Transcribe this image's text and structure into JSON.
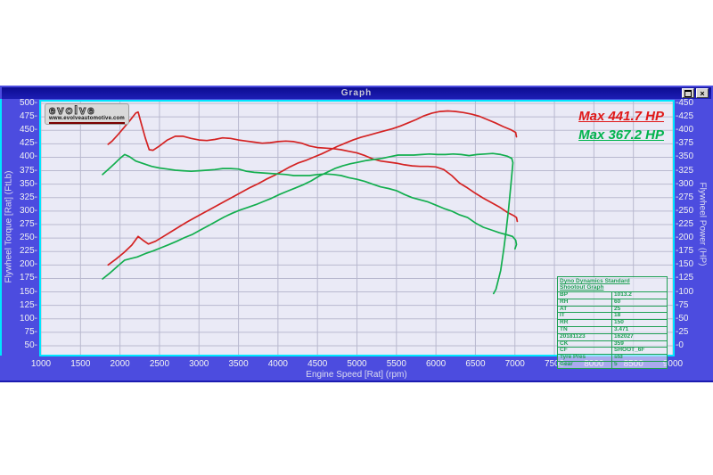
{
  "window": {
    "title": "Graph"
  },
  "titlebar_buttons": {
    "restore_label": "restore-window",
    "close_label": "close-window",
    "close_glyph": "×"
  },
  "logo": {
    "brand": "evolve",
    "url": "www.evolveautomotive.com"
  },
  "annotations": {
    "max_power_run1": "Max 441.7 HP",
    "max_power_run2": "Max 367.2 HP"
  },
  "info_table": {
    "title_line1": "Dyno Dynamics Standard",
    "title_line2": "Shootout Graph",
    "rows": [
      {
        "label": "BP",
        "value": "1013.2"
      },
      {
        "label": "RH",
        "value": "60"
      },
      {
        "label": "AT",
        "value": "25"
      },
      {
        "label": "IT",
        "value": "18"
      },
      {
        "label": "RR",
        "value": "150"
      },
      {
        "label": "TN",
        "value": "3.471"
      },
      {
        "label": "20181123",
        "value": "162027"
      },
      {
        "label": "CK",
        "value": "359"
      },
      {
        "label": "CF",
        "value": "SHOOT_6F"
      },
      {
        "label": "Tyre Pres",
        "value": "std"
      },
      {
        "label": "Gear",
        "value": "5"
      }
    ]
  },
  "colors": {
    "panel": "#4c4cdf",
    "titlebar": "#0c0c92",
    "plot_bg": "#eaeaf6",
    "plot_frame": "#00e6ff",
    "grid": "#b9b9cf",
    "run1": "#d42222",
    "run2": "#12ae4e",
    "max_red": "#e01818",
    "max_green": "#00b34d",
    "table_green": "#1fa055"
  },
  "chart_data": {
    "type": "line",
    "title": "Graph",
    "xlabel": "Engine Speed [Rat] (rpm)",
    "ylabel_left": "Flywheel Torque [Rat] (FtLb)",
    "ylabel_right": "Flywheel Power (HP)",
    "xlim": [
      1000,
      9000
    ],
    "ylim_left": [
      50,
      500
    ],
    "ylim_right": [
      0,
      450
    ],
    "grid": true,
    "xticks": [
      1000,
      1500,
      2000,
      2500,
      3000,
      3500,
      4000,
      4500,
      5000,
      5500,
      6000,
      6500,
      7000,
      7500,
      8000,
      8500,
      9000
    ],
    "yticks_left": [
      500,
      475,
      450,
      425,
      400,
      375,
      350,
      325,
      300,
      275,
      250,
      225,
      200,
      175,
      150,
      125,
      100,
      75,
      50
    ],
    "yticks_right": [
      450,
      425,
      400,
      375,
      350,
      325,
      300,
      275,
      250,
      225,
      200,
      175,
      150,
      125,
      100,
      75,
      50,
      25,
      0
    ],
    "max_annotations": [
      {
        "text": "Max 441.7 HP",
        "value_hp": 441.7,
        "run": "run1"
      },
      {
        "text": "Max 367.2 HP",
        "value_hp": 367.2,
        "run": "run2"
      }
    ],
    "series": [
      {
        "name": "run1-power",
        "axis": "right",
        "unit": "HP",
        "color": "#d42222",
        "points": [
          [
            1850,
            150
          ],
          [
            1950,
            161
          ],
          [
            2050,
            173
          ],
          [
            2150,
            187
          ],
          [
            2230,
            203
          ],
          [
            2290,
            196
          ],
          [
            2360,
            189
          ],
          [
            2450,
            194
          ],
          [
            2550,
            203
          ],
          [
            2650,
            212
          ],
          [
            2750,
            221
          ],
          [
            2850,
            230
          ],
          [
            2950,
            238
          ],
          [
            3050,
            246
          ],
          [
            3150,
            254
          ],
          [
            3250,
            262
          ],
          [
            3350,
            270
          ],
          [
            3450,
            278
          ],
          [
            3550,
            286
          ],
          [
            3650,
            294
          ],
          [
            3750,
            301
          ],
          [
            3850,
            309
          ],
          [
            3950,
            316
          ],
          [
            4050,
            324
          ],
          [
            4150,
            332
          ],
          [
            4250,
            339
          ],
          [
            4350,
            344
          ],
          [
            4450,
            350
          ],
          [
            4550,
            356
          ],
          [
            4650,
            363
          ],
          [
            4750,
            370
          ],
          [
            4850,
            376
          ],
          [
            4950,
            382
          ],
          [
            5050,
            387
          ],
          [
            5150,
            391
          ],
          [
            5250,
            395
          ],
          [
            5350,
            399
          ],
          [
            5450,
            403
          ],
          [
            5550,
            408
          ],
          [
            5650,
            414
          ],
          [
            5750,
            420
          ],
          [
            5850,
            427
          ],
          [
            5950,
            432
          ],
          [
            6050,
            435
          ],
          [
            6150,
            436
          ],
          [
            6250,
            435
          ],
          [
            6350,
            433
          ],
          [
            6450,
            430
          ],
          [
            6550,
            426
          ],
          [
            6650,
            420
          ],
          [
            6750,
            414
          ],
          [
            6850,
            407
          ],
          [
            6950,
            401
          ],
          [
            7010,
            396
          ],
          [
            7020,
            388
          ]
        ]
      },
      {
        "name": "run1-torque",
        "axis": "left",
        "unit": "FtLb",
        "color": "#d42222",
        "points": [
          [
            1850,
            424
          ],
          [
            1900,
            430
          ],
          [
            1975,
            442
          ],
          [
            2050,
            455
          ],
          [
            2125,
            468
          ],
          [
            2200,
            482
          ],
          [
            2230,
            484
          ],
          [
            2270,
            462
          ],
          [
            2320,
            436
          ],
          [
            2370,
            414
          ],
          [
            2420,
            413
          ],
          [
            2500,
            421
          ],
          [
            2600,
            432
          ],
          [
            2700,
            439
          ],
          [
            2800,
            439
          ],
          [
            2900,
            435
          ],
          [
            3000,
            432
          ],
          [
            3100,
            431
          ],
          [
            3200,
            433
          ],
          [
            3300,
            436
          ],
          [
            3400,
            435
          ],
          [
            3500,
            432
          ],
          [
            3600,
            430
          ],
          [
            3700,
            428
          ],
          [
            3800,
            426
          ],
          [
            3900,
            427
          ],
          [
            4000,
            429
          ],
          [
            4100,
            430
          ],
          [
            4200,
            429
          ],
          [
            4300,
            426
          ],
          [
            4400,
            421
          ],
          [
            4500,
            418
          ],
          [
            4600,
            417
          ],
          [
            4700,
            416
          ],
          [
            4800,
            414
          ],
          [
            4900,
            411
          ],
          [
            5000,
            408
          ],
          [
            5100,
            403
          ],
          [
            5200,
            397
          ],
          [
            5300,
            393
          ],
          [
            5400,
            391
          ],
          [
            5500,
            389
          ],
          [
            5600,
            386
          ],
          [
            5700,
            384
          ],
          [
            5800,
            383
          ],
          [
            5900,
            383
          ],
          [
            6000,
            382
          ],
          [
            6100,
            377
          ],
          [
            6200,
            366
          ],
          [
            6300,
            352
          ],
          [
            6400,
            343
          ],
          [
            6500,
            333
          ],
          [
            6600,
            324
          ],
          [
            6700,
            316
          ],
          [
            6800,
            308
          ],
          [
            6900,
            298
          ],
          [
            6980,
            292
          ],
          [
            7020,
            288
          ],
          [
            7030,
            281
          ]
        ]
      },
      {
        "name": "run2-power",
        "axis": "right",
        "unit": "HP",
        "color": "#12ae4e",
        "points": [
          [
            1780,
            124
          ],
          [
            1880,
            136
          ],
          [
            1980,
            149
          ],
          [
            2060,
            159
          ],
          [
            2140,
            162
          ],
          [
            2220,
            165
          ],
          [
            2320,
            171
          ],
          [
            2420,
            176
          ],
          [
            2520,
            182
          ],
          [
            2620,
            188
          ],
          [
            2720,
            194
          ],
          [
            2820,
            201
          ],
          [
            2920,
            207
          ],
          [
            3020,
            215
          ],
          [
            3120,
            223
          ],
          [
            3220,
            231
          ],
          [
            3320,
            239
          ],
          [
            3420,
            246
          ],
          [
            3520,
            252
          ],
          [
            3620,
            257
          ],
          [
            3720,
            262
          ],
          [
            3820,
            268
          ],
          [
            3920,
            274
          ],
          [
            4020,
            281
          ],
          [
            4120,
            287
          ],
          [
            4220,
            293
          ],
          [
            4320,
            299
          ],
          [
            4420,
            306
          ],
          [
            4520,
            315
          ],
          [
            4620,
            322
          ],
          [
            4720,
            329
          ],
          [
            4820,
            334
          ],
          [
            4920,
            338
          ],
          [
            5020,
            341
          ],
          [
            5120,
            344
          ],
          [
            5220,
            346
          ],
          [
            5320,
            348
          ],
          [
            5420,
            351
          ],
          [
            5520,
            354
          ],
          [
            5620,
            354
          ],
          [
            5720,
            354
          ],
          [
            5820,
            355
          ],
          [
            5920,
            356
          ],
          [
            6020,
            355
          ],
          [
            6120,
            355
          ],
          [
            6220,
            356
          ],
          [
            6320,
            355
          ],
          [
            6420,
            353
          ],
          [
            6520,
            355
          ],
          [
            6620,
            356
          ],
          [
            6720,
            357
          ],
          [
            6820,
            355
          ],
          [
            6900,
            352
          ],
          [
            6960,
            348
          ],
          [
            6975,
            340
          ],
          [
            6950,
            300
          ],
          [
            6920,
            255
          ],
          [
            6890,
            215
          ],
          [
            6860,
            180
          ],
          [
            6820,
            140
          ],
          [
            6760,
            105
          ],
          [
            6730,
            97
          ]
        ]
      },
      {
        "name": "run2-torque",
        "axis": "left",
        "unit": "FtLb",
        "color": "#12ae4e",
        "points": [
          [
            1780,
            368
          ],
          [
            1850,
            377
          ],
          [
            1930,
            388
          ],
          [
            2000,
            398
          ],
          [
            2060,
            405
          ],
          [
            2120,
            401
          ],
          [
            2200,
            393
          ],
          [
            2300,
            388
          ],
          [
            2400,
            383
          ],
          [
            2500,
            380
          ],
          [
            2600,
            378
          ],
          [
            2700,
            376
          ],
          [
            2800,
            375
          ],
          [
            2900,
            374
          ],
          [
            3000,
            375
          ],
          [
            3100,
            376
          ],
          [
            3200,
            377
          ],
          [
            3300,
            379
          ],
          [
            3400,
            379
          ],
          [
            3500,
            378
          ],
          [
            3600,
            374
          ],
          [
            3700,
            372
          ],
          [
            3800,
            371
          ],
          [
            3900,
            370
          ],
          [
            4000,
            369
          ],
          [
            4100,
            368
          ],
          [
            4200,
            366
          ],
          [
            4300,
            366
          ],
          [
            4400,
            366
          ],
          [
            4500,
            368
          ],
          [
            4600,
            369
          ],
          [
            4700,
            368
          ],
          [
            4800,
            366
          ],
          [
            4900,
            362
          ],
          [
            5000,
            359
          ],
          [
            5100,
            355
          ],
          [
            5200,
            350
          ],
          [
            5300,
            345
          ],
          [
            5400,
            342
          ],
          [
            5500,
            338
          ],
          [
            5600,
            331
          ],
          [
            5700,
            325
          ],
          [
            5800,
            321
          ],
          [
            5900,
            317
          ],
          [
            6000,
            311
          ],
          [
            6100,
            305
          ],
          [
            6200,
            300
          ],
          [
            6300,
            293
          ],
          [
            6400,
            288
          ],
          [
            6500,
            278
          ],
          [
            6600,
            270
          ],
          [
            6700,
            265
          ],
          [
            6800,
            260
          ],
          [
            6900,
            256
          ],
          [
            6970,
            253
          ],
          [
            7010,
            246
          ],
          [
            7020,
            238
          ],
          [
            7000,
            230
          ]
        ]
      }
    ]
  }
}
